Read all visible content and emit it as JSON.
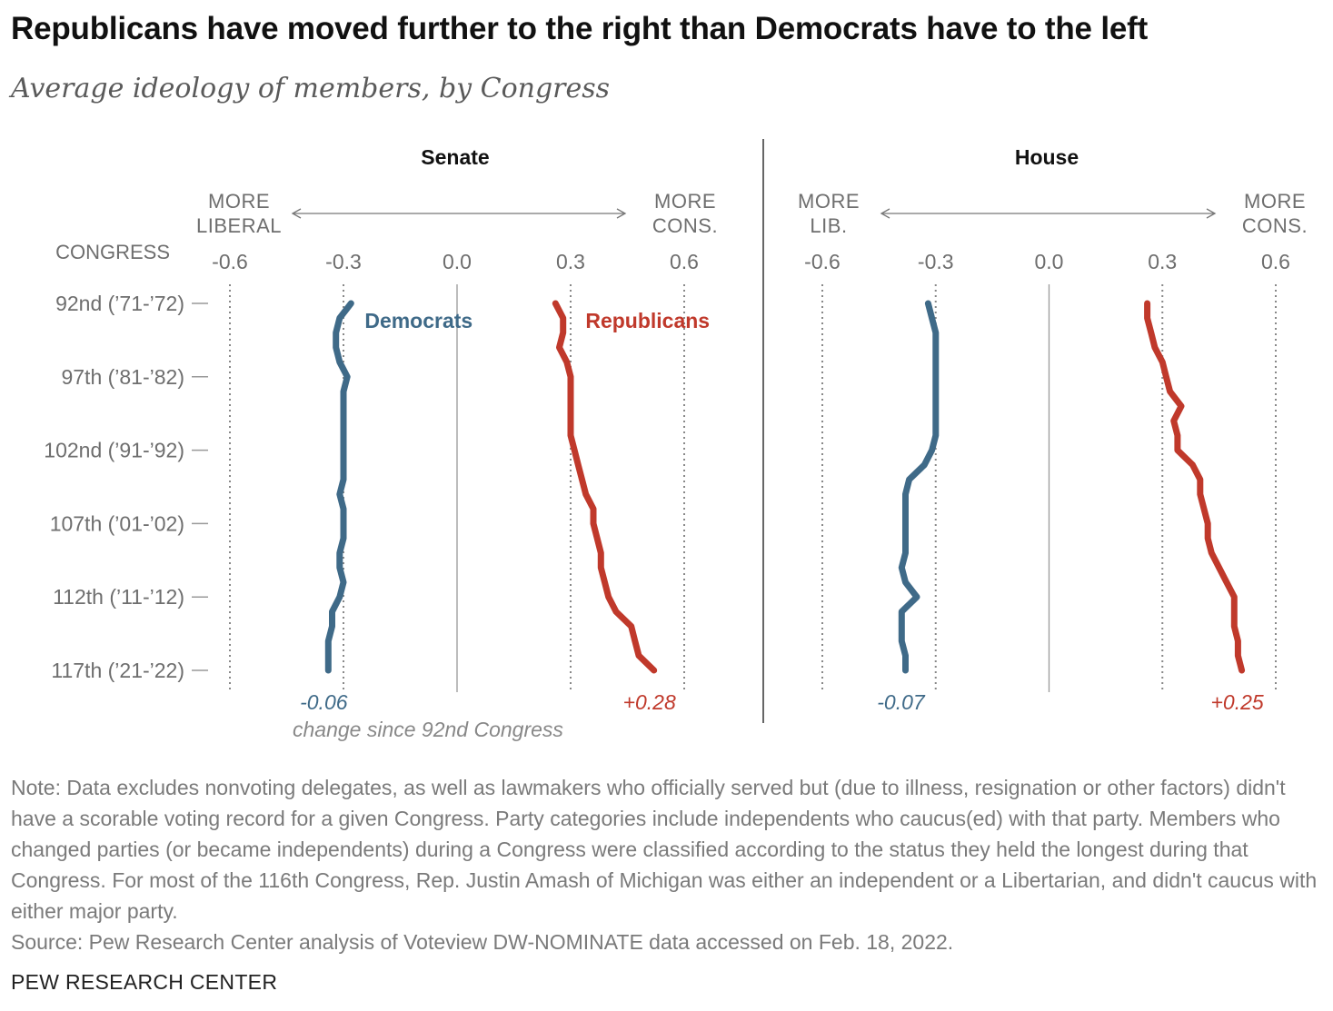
{
  "title": "Republicans have moved further to the right than Democrats have to the left",
  "subtitle": "Average ideology of members, by Congress",
  "congress_header": "CONGRESS",
  "change_caption": "change since 92nd Congress",
  "note": "Note: Data excludes nonvoting delegates, as well as lawmakers who officially served but (due to illness, resignation or other factors) didn't have a scorable voting record for a given Congress. Party categories include independents who caucus(ed) with that party. Members who changed parties (or became independents) during a Congress were classified according to the status they held the longest during that Congress. For most of the 116th Congress, Rep. Justin Amash of Michigan was either an independent or a Libertarian, and didn't caucus with either major party.",
  "source": "Source: Pew Research Center analysis of Voteview DW-NOMINATE data accessed on Feb. 18, 2022.",
  "footer": "PEW RESEARCH CENTER",
  "colors": {
    "democrats": "#3f6a88",
    "republicans": "#c0392b",
    "axis": "#888888",
    "text": "#6e6e6e"
  },
  "chart_data": [
    {
      "type": "line",
      "title": "Senate",
      "axis_left_label": [
        "MORE",
        "LIBERAL"
      ],
      "axis_right_label": [
        "MORE",
        "CONS."
      ],
      "xlim": [
        -0.6,
        0.6
      ],
      "x_ticks": [
        "-0.6",
        "-0.3",
        "0.0",
        "0.3",
        "0.6"
      ],
      "x_tick_values": [
        -0.6,
        -0.3,
        0.0,
        0.3,
        0.6
      ],
      "y_ticks": [
        {
          "congress": 92,
          "label": "92nd (’71-’72)"
        },
        {
          "congress": 97,
          "label": "97th (’81-’82)"
        },
        {
          "congress": 102,
          "label": "102nd (’91-’92)"
        },
        {
          "congress": 107,
          "label": "107th (’01-’02)"
        },
        {
          "congress": 112,
          "label": "112th (’11-’12)"
        },
        {
          "congress": 117,
          "label": "117th (’21-’22)"
        }
      ],
      "congress_range": [
        92,
        117
      ],
      "series": [
        {
          "name": "Democrats",
          "color": "#3f6a88",
          "change": "-0.06",
          "congress": [
            92,
            93,
            94,
            95,
            96,
            97,
            98,
            99,
            100,
            101,
            102,
            103,
            104,
            105,
            106,
            107,
            108,
            109,
            110,
            111,
            112,
            113,
            114,
            115,
            116,
            117
          ],
          "values": [
            -0.28,
            -0.31,
            -0.32,
            -0.32,
            -0.31,
            -0.29,
            -0.3,
            -0.3,
            -0.3,
            -0.3,
            -0.3,
            -0.3,
            -0.3,
            -0.31,
            -0.3,
            -0.3,
            -0.3,
            -0.31,
            -0.31,
            -0.3,
            -0.31,
            -0.33,
            -0.33,
            -0.34,
            -0.34,
            -0.34
          ]
        },
        {
          "name": "Republicans",
          "color": "#c0392b",
          "change": "+0.28",
          "congress": [
            92,
            93,
            94,
            95,
            96,
            97,
            98,
            99,
            100,
            101,
            102,
            103,
            104,
            105,
            106,
            107,
            108,
            109,
            110,
            111,
            112,
            113,
            114,
            115,
            116,
            117
          ],
          "values": [
            0.26,
            0.28,
            0.28,
            0.27,
            0.29,
            0.3,
            0.3,
            0.3,
            0.3,
            0.3,
            0.31,
            0.32,
            0.33,
            0.34,
            0.36,
            0.36,
            0.37,
            0.38,
            0.38,
            0.39,
            0.4,
            0.42,
            0.46,
            0.47,
            0.48,
            0.52
          ]
        }
      ]
    },
    {
      "type": "line",
      "title": "House",
      "axis_left_label": [
        "MORE",
        "LIB."
      ],
      "axis_right_label": [
        "MORE",
        "CONS."
      ],
      "xlim": [
        -0.6,
        0.6
      ],
      "x_ticks": [
        "-0.6",
        "-0.3",
        "0.0",
        "0.3",
        "0.6"
      ],
      "x_tick_values": [
        -0.6,
        -0.3,
        0.0,
        0.3,
        0.6
      ],
      "congress_range": [
        92,
        117
      ],
      "series": [
        {
          "name": "Democrats",
          "color": "#3f6a88",
          "change": "-0.07",
          "congress": [
            92,
            93,
            94,
            95,
            96,
            97,
            98,
            99,
            100,
            101,
            102,
            103,
            104,
            105,
            106,
            107,
            108,
            109,
            110,
            111,
            112,
            113,
            114,
            115,
            116,
            117
          ],
          "values": [
            -0.32,
            -0.31,
            -0.3,
            -0.3,
            -0.3,
            -0.3,
            -0.3,
            -0.3,
            -0.3,
            -0.3,
            -0.31,
            -0.33,
            -0.37,
            -0.38,
            -0.38,
            -0.38,
            -0.38,
            -0.38,
            -0.39,
            -0.38,
            -0.35,
            -0.39,
            -0.39,
            -0.39,
            -0.38,
            -0.38
          ]
        },
        {
          "name": "Republicans",
          "color": "#c0392b",
          "change": "+0.25",
          "congress": [
            92,
            93,
            94,
            95,
            96,
            97,
            98,
            99,
            100,
            101,
            102,
            103,
            104,
            105,
            106,
            107,
            108,
            109,
            110,
            111,
            112,
            113,
            114,
            115,
            116,
            117
          ],
          "values": [
            0.26,
            0.26,
            0.27,
            0.28,
            0.3,
            0.31,
            0.32,
            0.35,
            0.33,
            0.34,
            0.34,
            0.38,
            0.4,
            0.4,
            0.41,
            0.42,
            0.42,
            0.43,
            0.45,
            0.47,
            0.49,
            0.49,
            0.49,
            0.5,
            0.5,
            0.51
          ]
        }
      ]
    }
  ]
}
